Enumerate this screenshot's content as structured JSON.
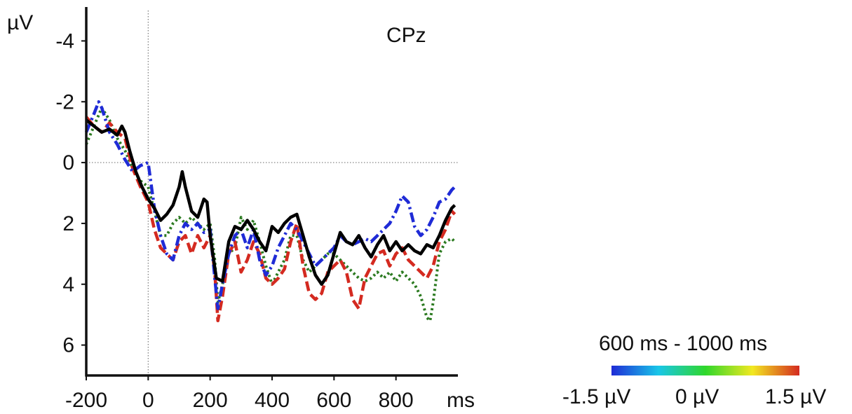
{
  "chart_data": {
    "type": "line",
    "channel": "CPz",
    "y_unit": "µV",
    "x_unit": "ms",
    "xlim": [
      -200,
      1000
    ],
    "ylim": [
      -5,
      7
    ],
    "y_inverted": true,
    "x_ticks": [
      -200,
      0,
      200,
      400,
      600,
      800
    ],
    "x_tick_labels": [
      "-200",
      "0",
      "200",
      "400",
      "600",
      "800"
    ],
    "y_ticks": [
      -4,
      -2,
      0,
      2,
      4,
      6
    ],
    "y_tick_labels": [
      "-4",
      "-2",
      "0",
      "2",
      "4",
      "6"
    ],
    "zero_lines": true,
    "legend": "none",
    "series": [
      {
        "color": "#000000",
        "style": "solid",
        "x": [
          -200,
          -175,
          -150,
          -125,
          -100,
          -85,
          -75,
          -60,
          -40,
          -20,
          0,
          20,
          40,
          60,
          80,
          100,
          110,
          120,
          140,
          160,
          180,
          190,
          200,
          220,
          240,
          260,
          280,
          300,
          320,
          340,
          360,
          380,
          400,
          420,
          440,
          460,
          480,
          500,
          520,
          540,
          560,
          580,
          600,
          620,
          640,
          660,
          680,
          700,
          720,
          740,
          760,
          780,
          800,
          820,
          840,
          860,
          880,
          900,
          920,
          940,
          960,
          980,
          990
        ],
        "y": [
          -1.4,
          -1.2,
          -1.0,
          -1.1,
          -0.9,
          -1.2,
          -1.0,
          -0.4,
          0.3,
          0.8,
          1.2,
          1.5,
          1.9,
          1.7,
          1.4,
          0.8,
          0.3,
          0.8,
          1.6,
          1.8,
          1.2,
          1.3,
          2.4,
          3.8,
          3.9,
          2.6,
          2.1,
          2.2,
          1.9,
          2.2,
          2.6,
          2.9,
          2.1,
          2.3,
          2.0,
          1.8,
          1.7,
          2.4,
          3.1,
          3.7,
          4.0,
          3.7,
          3.0,
          2.3,
          2.6,
          2.7,
          2.4,
          2.8,
          3.1,
          2.7,
          2.4,
          2.9,
          2.6,
          2.9,
          2.7,
          2.9,
          3.0,
          2.7,
          2.8,
          2.4,
          1.9,
          1.5,
          1.4
        ]
      },
      {
        "color": "#d42a20",
        "style": "dashed",
        "x": [
          -200,
          -175,
          -150,
          -125,
          -100,
          -75,
          -50,
          -25,
          0,
          20,
          40,
          60,
          80,
          100,
          120,
          140,
          160,
          180,
          200,
          215,
          225,
          240,
          260,
          280,
          300,
          320,
          340,
          360,
          380,
          400,
          420,
          440,
          460,
          480,
          500,
          520,
          540,
          560,
          580,
          600,
          620,
          640,
          660,
          680,
          700,
          720,
          740,
          760,
          780,
          800,
          820,
          840,
          860,
          880,
          900,
          920,
          940,
          960,
          980,
          990
        ],
        "y": [
          -1.5,
          -1.2,
          -1.0,
          -1.3,
          -1.0,
          -0.8,
          0.2,
          0.8,
          1.3,
          2.2,
          2.8,
          3.0,
          3.2,
          2.6,
          2.4,
          3.0,
          2.4,
          2.8,
          2.4,
          3.6,
          5.2,
          4.4,
          3.0,
          2.6,
          3.6,
          3.2,
          2.6,
          3.0,
          3.8,
          4.0,
          3.8,
          3.5,
          2.6,
          2.0,
          3.4,
          4.3,
          4.5,
          4.3,
          3.6,
          3.4,
          3.2,
          3.6,
          4.5,
          4.8,
          3.8,
          3.4,
          3.0,
          2.9,
          3.4,
          3.0,
          2.8,
          3.2,
          3.4,
          3.6,
          3.8,
          3.4,
          2.6,
          2.2,
          1.6,
          1.7
        ]
      },
      {
        "color": "#2b7a20",
        "style": "dotted",
        "x": [
          -200,
          -175,
          -150,
          -125,
          -100,
          -75,
          -50,
          -25,
          0,
          20,
          40,
          60,
          80,
          100,
          120,
          140,
          160,
          180,
          200,
          215,
          225,
          240,
          260,
          280,
          300,
          320,
          340,
          360,
          380,
          400,
          420,
          440,
          460,
          480,
          500,
          520,
          540,
          560,
          580,
          600,
          620,
          640,
          660,
          680,
          700,
          720,
          740,
          760,
          780,
          800,
          820,
          840,
          860,
          880,
          900,
          910,
          920,
          940,
          960,
          980,
          990
        ],
        "y": [
          -0.6,
          -1.2,
          -1.8,
          -1.4,
          -0.8,
          -0.4,
          0.2,
          0.6,
          0.8,
          1.6,
          2.4,
          2.4,
          2.0,
          1.8,
          2.0,
          1.8,
          2.0,
          2.2,
          2.0,
          3.2,
          4.6,
          4.0,
          3.0,
          2.8,
          1.8,
          2.2,
          1.9,
          2.6,
          3.4,
          4.0,
          3.6,
          3.2,
          2.4,
          2.4,
          3.2,
          3.6,
          3.4,
          3.2,
          3.0,
          3.0,
          3.2,
          3.4,
          3.6,
          3.8,
          3.9,
          3.8,
          3.6,
          3.8,
          3.6,
          3.9,
          3.6,
          3.8,
          4.0,
          4.4,
          5.1,
          5.2,
          4.6,
          3.0,
          2.6,
          2.5,
          2.6
        ]
      },
      {
        "color": "#1f2bd6",
        "style": "dashdot",
        "x": [
          -200,
          -175,
          -160,
          -150,
          -125,
          -100,
          -75,
          -50,
          -25,
          0,
          20,
          40,
          60,
          80,
          100,
          120,
          140,
          160,
          180,
          200,
          215,
          225,
          240,
          260,
          280,
          300,
          320,
          340,
          360,
          380,
          400,
          420,
          440,
          460,
          480,
          500,
          520,
          540,
          560,
          580,
          600,
          620,
          640,
          660,
          680,
          700,
          720,
          740,
          760,
          780,
          800,
          820,
          840,
          860,
          880,
          900,
          920,
          940,
          960,
          980,
          990
        ],
        "y": [
          -1.0,
          -1.6,
          -2.0,
          -1.8,
          -1.0,
          -0.6,
          -0.1,
          0.3,
          0.1,
          0.0,
          1.5,
          2.4,
          3.0,
          3.2,
          2.4,
          2.0,
          2.2,
          2.0,
          2.3,
          2.2,
          3.8,
          4.8,
          4.0,
          3.0,
          2.4,
          2.2,
          2.8,
          2.2,
          3.2,
          3.7,
          3.4,
          2.8,
          2.4,
          2.0,
          2.2,
          2.6,
          3.0,
          3.4,
          3.2,
          3.0,
          2.8,
          2.4,
          2.6,
          2.7,
          2.6,
          2.5,
          2.6,
          2.4,
          2.2,
          2.0,
          1.6,
          1.1,
          1.3,
          2.1,
          2.4,
          2.2,
          1.8,
          1.3,
          1.2,
          0.9,
          0.8
        ]
      }
    ]
  },
  "colorbar": {
    "title": "600 ms - 1000 ms",
    "min_label": "-1.5 µV",
    "mid_label": "0 µV",
    "max_label": "1.5 µV",
    "colors": [
      "#1f2bd6",
      "#19c6e8",
      "#2fd72b",
      "#f2e821",
      "#d42a20"
    ]
  }
}
